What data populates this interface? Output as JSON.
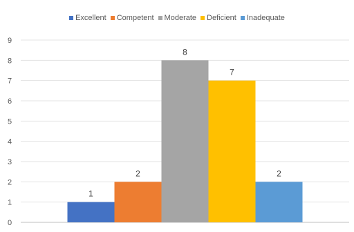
{
  "chart_data": {
    "type": "bar",
    "title": "",
    "xlabel": "",
    "ylabel": "",
    "ylim": [
      0,
      9
    ],
    "yticks": [
      0,
      1,
      2,
      3,
      4,
      5,
      6,
      7,
      8,
      9
    ],
    "grid": true,
    "legend_position": "top",
    "series": [
      {
        "name": "Excellent",
        "value": 1,
        "color": "#4472C4"
      },
      {
        "name": "Competent",
        "value": 2,
        "color": "#ED7D31"
      },
      {
        "name": "Moderate",
        "value": 8,
        "color": "#A5A5A5"
      },
      {
        "name": "Deficient",
        "value": 7,
        "color": "#FFC000"
      },
      {
        "name": "Inadequate",
        "value": 2,
        "color": "#5B9BD5"
      }
    ]
  }
}
